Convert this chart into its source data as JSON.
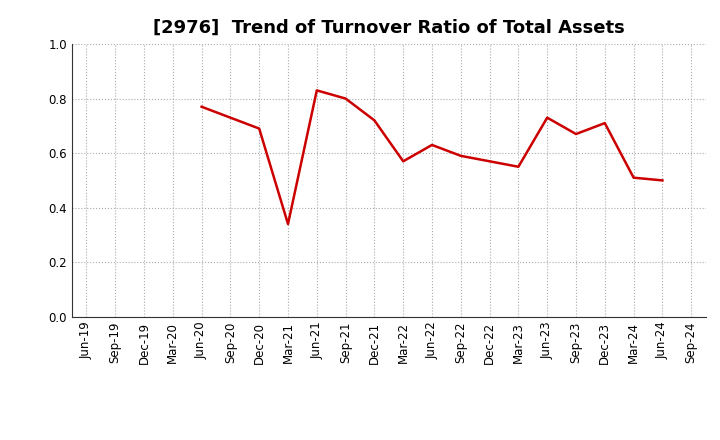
{
  "title": "[2976]  Trend of Turnover Ratio of Total Assets",
  "x_labels": [
    "Jun-19",
    "Sep-19",
    "Dec-19",
    "Mar-20",
    "Jun-20",
    "Sep-20",
    "Dec-20",
    "Mar-21",
    "Jun-21",
    "Sep-21",
    "Dec-21",
    "Mar-22",
    "Jun-22",
    "Sep-22",
    "Dec-22",
    "Mar-23",
    "Jun-23",
    "Sep-23",
    "Dec-23",
    "Mar-24",
    "Jun-24",
    "Sep-24"
  ],
  "values": [
    null,
    null,
    null,
    null,
    0.77,
    0.73,
    0.69,
    0.34,
    0.83,
    0.8,
    0.72,
    0.57,
    0.63,
    0.59,
    0.57,
    0.55,
    0.73,
    0.67,
    0.71,
    0.51,
    0.5,
    null
  ],
  "line_color": "#cc0000",
  "line_width": 1.8,
  "ylim": [
    0.0,
    1.0
  ],
  "yticks": [
    0.0,
    0.2,
    0.4,
    0.6,
    0.8,
    1.0
  ],
  "background_color": "#ffffff",
  "grid_color": "#aaaaaa",
  "title_fontsize": 13,
  "tick_fontsize": 8.5
}
